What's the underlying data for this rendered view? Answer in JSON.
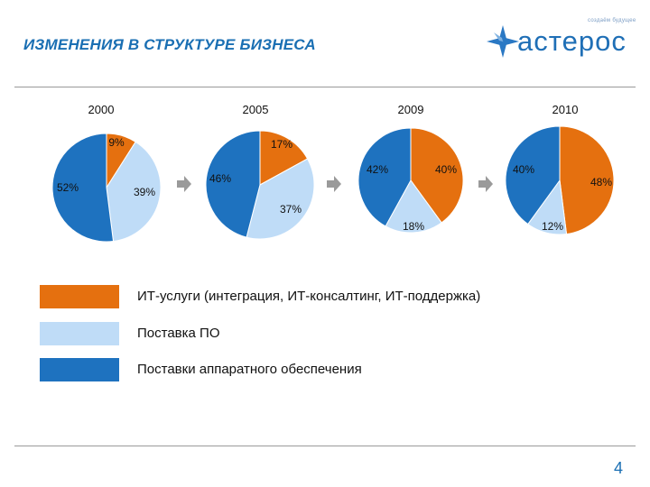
{
  "header": {
    "title": "ИЗМЕНЕНИЯ В СТРУКТУРЕ БИЗНЕСА",
    "logo_word": "астерос",
    "logo_tagline": "создаём будущее"
  },
  "colors": {
    "title": "#1a6fb3",
    "it_services": "#e5700f",
    "software": "#bfdcf7",
    "hardware": "#1e72bf",
    "arrow": "#9a9a9a"
  },
  "legend": [
    {
      "label": "ИТ-услуги (интеграция,  ИТ-консалтинг, ИТ-поддержка)",
      "color": "#e5700f"
    },
    {
      "label": "Поставка ПО",
      "color": "#bfdcf7"
    },
    {
      "label": "Поставки аппаратного обеспечения",
      "color": "#1e72bf"
    }
  ],
  "page_number": "4",
  "chart_data": {
    "type": "pie",
    "series_names": [
      "ИТ-услуги (интеграция,  ИТ-консалтинг, ИТ-поддержка)",
      "Поставка ПО",
      "Поставки аппаратного обеспечения"
    ],
    "charts": [
      {
        "year": "2000",
        "values": [
          9,
          39,
          52
        ],
        "labels": [
          "9%",
          "39%",
          "52%"
        ]
      },
      {
        "year": "2005",
        "values": [
          17,
          37,
          46
        ],
        "labels": [
          "17%",
          "37%",
          "46%"
        ]
      },
      {
        "year": "2009",
        "values": [
          40,
          18,
          42
        ],
        "labels": [
          "40%",
          "18%",
          "42%"
        ]
      },
      {
        "year": "2010",
        "values": [
          48,
          12,
          40
        ],
        "labels": [
          "48%",
          "12%",
          "40%"
        ]
      }
    ]
  }
}
